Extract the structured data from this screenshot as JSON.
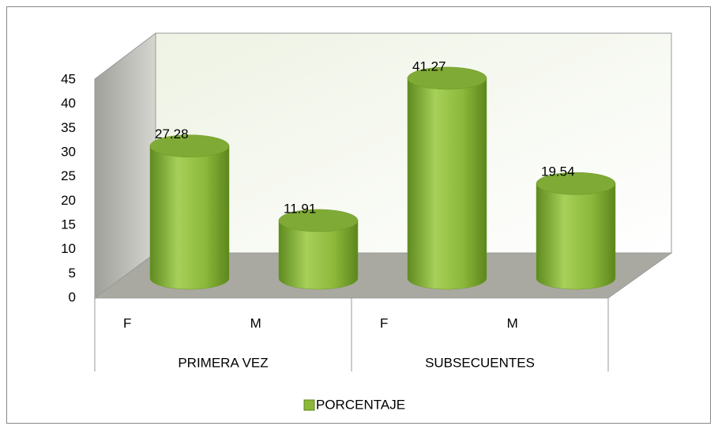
{
  "chart_data": {
    "type": "bar3d",
    "categories": [
      "F",
      "M",
      "F",
      "M"
    ],
    "groups": [
      "PRIMERA VEZ",
      "SUBSECUENTES"
    ],
    "series": [
      {
        "name": "PORCENTAJE",
        "color": "#8db83a",
        "values": [
          27.28,
          11.91,
          41.27,
          19.54
        ]
      }
    ],
    "ylim": [
      0,
      45
    ],
    "yticks": [
      0,
      5,
      10,
      15,
      20,
      25,
      30,
      35,
      40,
      45
    ],
    "grid": false,
    "legend": "bottom"
  }
}
